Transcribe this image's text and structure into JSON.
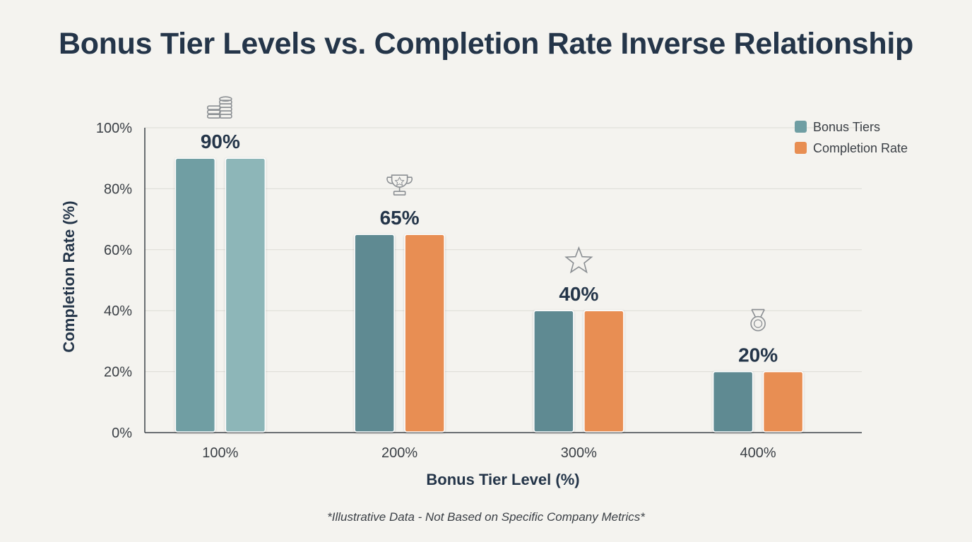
{
  "title": "Bonus Tier Levels vs. Completion Rate Inverse Relationship",
  "footnote": "*Illustrative Data - Not Based on Specific Company Metrics*",
  "colors": {
    "bonus_tiers": "#5f8a92",
    "bonus_tiers_first": "#7fa9ad",
    "completion_rate": "#e88e52",
    "completion_rate_first": "#8db6b8",
    "grid": "#dcdcd6",
    "axis": "#3c4248",
    "icon": "#8b8f93"
  },
  "chart_data": {
    "type": "bar",
    "xlabel": "Bonus Tier Level (%)",
    "ylabel": "Completion Rate (%)",
    "ylim": [
      0,
      100
    ],
    "yticks": [
      "0%",
      "20%",
      "40%",
      "60%",
      "80%",
      "100%"
    ],
    "grid": true,
    "legend_position": "top-right",
    "categories": [
      "100%",
      "200%",
      "300%",
      "400%"
    ],
    "series": [
      {
        "name": "Bonus Tiers",
        "values": [
          90,
          65,
          40,
          20
        ]
      },
      {
        "name": "Completion Rate",
        "values": [
          90,
          65,
          40,
          20
        ]
      }
    ],
    "data_labels": [
      "90%",
      "65%",
      "40%",
      "20%"
    ],
    "icons": [
      "coins-icon",
      "trophy-icon",
      "star-icon",
      "medal-icon"
    ]
  }
}
